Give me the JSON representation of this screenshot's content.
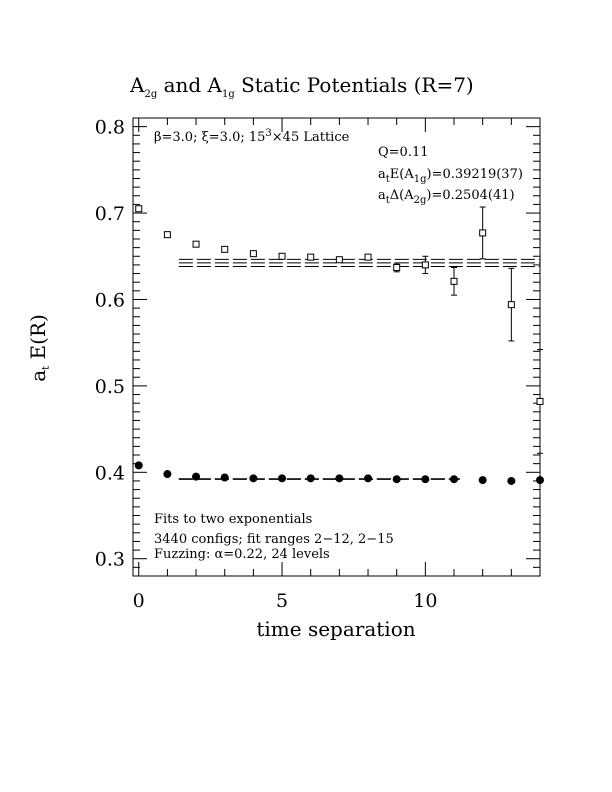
{
  "chart_data": {
    "type": "scatter",
    "title": {
      "pre": "A",
      "sub1": "2g",
      "mid": " and A",
      "sub2": "1g",
      "post": " Static Potentials (R=7)"
    },
    "xlabel": "time separation",
    "ylabel": {
      "main": "a",
      "sub": "t",
      "post": " E(R)"
    },
    "xlim": [
      -0.2,
      14
    ],
    "ylim": [
      0.28,
      0.81
    ],
    "xticks": [
      0,
      5,
      10
    ],
    "xtick_labels": [
      "0",
      "5",
      "10"
    ],
    "yticks": [
      0.3,
      0.4,
      0.5,
      0.6,
      0.7,
      0.8
    ],
    "ytick_labels": [
      "0.3",
      "0.4",
      "0.5",
      "0.6",
      "0.7",
      "0.8"
    ],
    "grid": false,
    "series": [
      {
        "marker": "open-square",
        "x": [
          0,
          1,
          2,
          3,
          4,
          5,
          6,
          7,
          8,
          9,
          10,
          11,
          12,
          13,
          14
        ],
        "y": [
          0.705,
          0.675,
          0.664,
          0.658,
          0.653,
          0.65,
          0.649,
          0.646,
          0.649,
          0.637,
          0.64,
          0.621,
          0.677,
          0.594,
          0.482
        ],
        "err": [
          0,
          0,
          0,
          0,
          0,
          0,
          0,
          0,
          0.003,
          0.005,
          0.01,
          0.016,
          0.03,
          0.042,
          0.06
        ]
      },
      {
        "marker": "filled-circle",
        "x": [
          0,
          1,
          2,
          3,
          4,
          5,
          6,
          7,
          8,
          9,
          10,
          11,
          12,
          13,
          14
        ],
        "y": [
          0.408,
          0.398,
          0.395,
          0.394,
          0.393,
          0.393,
          0.393,
          0.393,
          0.393,
          0.392,
          0.392,
          0.392,
          0.391,
          0.39,
          0.391
        ],
        "err": [
          0,
          0,
          0,
          0,
          0,
          0,
          0,
          0,
          0,
          0,
          0,
          0,
          0,
          0,
          0
        ]
      }
    ],
    "fit_bands": [
      {
        "center": 0.6423,
        "err": 0.0041,
        "x_range": [
          1.4,
          14
        ]
      },
      {
        "center": 0.3922,
        "err": 0.0004,
        "x_range": [
          1.4,
          11.2
        ]
      }
    ],
    "annotations": {
      "lattice": {
        "beta": "β",
        "t1": "=3.0; ",
        "xi": "ξ",
        "t2": "=3.0; 15",
        "sup": "3",
        "t3": "×45 Lattice"
      },
      "q": "Q=0.11",
      "a1g": {
        "a": "a",
        "asub": "t",
        "mid": "E(A",
        "s": "1g",
        "end": ")=0.39219(37)"
      },
      "a2g": {
        "a": "a",
        "asub": "t",
        "mid": "Δ(A",
        "s": "2g",
        "end": ")=0.2504(41)"
      },
      "fits_line1": "Fits to two exponentials",
      "fits_line2": "3440 configs; fit ranges 2−12, 2−15",
      "fits_line3": "Fuzzing: α=0.22, 24 levels"
    }
  }
}
